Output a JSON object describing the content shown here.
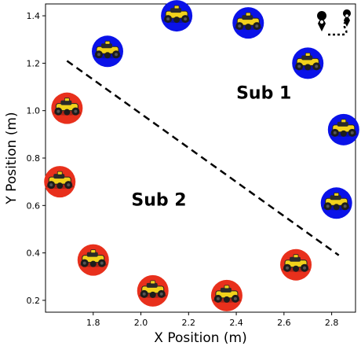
{
  "chart_data": {
    "type": "scatter",
    "xlabel": "X Position (m)",
    "ylabel": "Y Position (m)",
    "xlim": [
      1.6,
      2.9
    ],
    "ylim": [
      0.15,
      1.45
    ],
    "xticks": [
      1.8,
      2.0,
      2.2,
      2.4,
      2.6,
      2.8
    ],
    "yticks": [
      0.2,
      0.4,
      0.6,
      0.8,
      1.0,
      1.2,
      1.4
    ],
    "xtick_labels": [
      "1.8",
      "2.0",
      "2.2",
      "2.4",
      "2.6",
      "2.8"
    ],
    "ytick_labels": [
      "0.2",
      "0.4",
      "0.6",
      "0.8",
      "1.0",
      "1.2",
      "1.4"
    ],
    "grid": false,
    "points": [
      {
        "x": 1.86,
        "y": 1.25,
        "group": "Sub 1"
      },
      {
        "x": 2.15,
        "y": 1.4,
        "group": "Sub 1"
      },
      {
        "x": 2.45,
        "y": 1.37,
        "group": "Sub 1"
      },
      {
        "x": 2.7,
        "y": 1.2,
        "group": "Sub 1"
      },
      {
        "x": 2.85,
        "y": 0.92,
        "group": "Sub 1"
      },
      {
        "x": 2.82,
        "y": 0.61,
        "group": "Sub 1"
      },
      {
        "x": 1.69,
        "y": 1.01,
        "group": "Sub 2"
      },
      {
        "x": 1.66,
        "y": 0.7,
        "group": "Sub 2"
      },
      {
        "x": 1.8,
        "y": 0.37,
        "group": "Sub 2"
      },
      {
        "x": 2.05,
        "y": 0.24,
        "group": "Sub 2"
      },
      {
        "x": 2.36,
        "y": 0.22,
        "group": "Sub 2"
      },
      {
        "x": 2.65,
        "y": 0.35,
        "group": "Sub 2"
      }
    ],
    "group_colors": {
      "Sub 1": "#0a12e8",
      "Sub 2": "#e8301c"
    },
    "divider_line": {
      "x": [
        1.69,
        2.83
      ],
      "y": [
        1.21,
        0.39
      ],
      "style": "dashed",
      "color": "#000000"
    },
    "annotations": [
      {
        "text": "Sub 1",
        "x": 2.4,
        "y": 1.05
      },
      {
        "text": "Sub 2",
        "x": 1.96,
        "y": 0.6
      }
    ],
    "marker_icon": "robot-vehicle-icon",
    "corner_icon": "route-pin-icon"
  }
}
